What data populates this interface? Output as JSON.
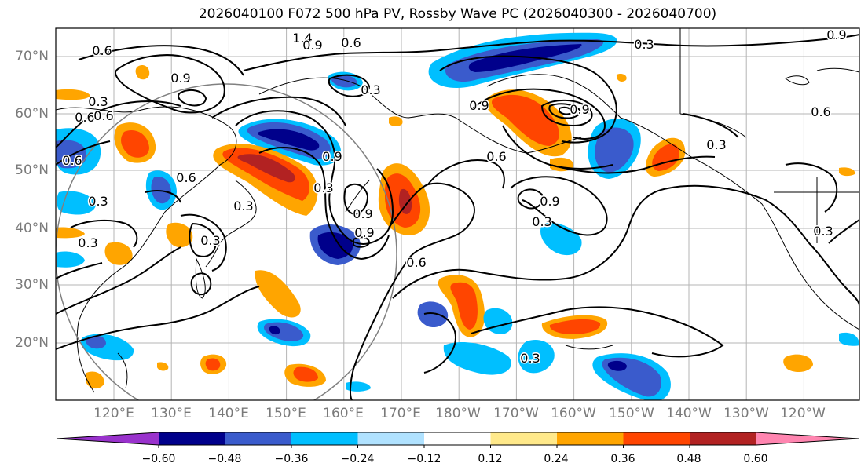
{
  "title": "2026040100 F072 500 hPa PV, Rossby Wave PC (2026040300 - 2026040700)",
  "lat_labels": [
    "70°N",
    "60°N",
    "50°N",
    "40°N",
    "30°N",
    "20°N"
  ],
  "lon_labels": [
    "120°E",
    "130°E",
    "140°E",
    "150°E",
    "160°E",
    "170°E",
    "180°W",
    "170°W",
    "160°W",
    "150°W",
    "140°W",
    "130°W",
    "120°W"
  ],
  "colorbar": {
    "ticks": [
      "−0.60",
      "−0.48",
      "−0.36",
      "−0.24",
      "−0.12",
      "0.12",
      "0.24",
      "0.36",
      "0.48",
      "0.60"
    ],
    "colors": [
      "#9932cc",
      "#00008b",
      "#3a5bcc",
      "#00bfff",
      "#b0e2ff",
      "#ffffff",
      "#ffe98a",
      "#ffa500",
      "#ff4500",
      "#b22222",
      "#ff85b0"
    ]
  },
  "contour_labels": [
    "1.4",
    "0.9",
    "0.6",
    "0.6",
    "0.9",
    "0.3",
    "0.3",
    "0.6",
    "0.9",
    "0.6",
    "0.3",
    "0.3",
    "0.6",
    "0.9",
    "0.6",
    "0.6",
    "0.3",
    "0.3",
    "0.3",
    "0.3",
    "0.9",
    "0.9",
    "0.9",
    "0.3",
    "0.6",
    "0.3",
    "0.3",
    "0.6",
    "0.9",
    "0.9",
    "0.3"
  ],
  "anomaly_colors": {
    "strong_negative": "#00008b",
    "negative": "#3a5bcc",
    "weak_negative": "#00bfff",
    "faint_negative": "#b0e2ff",
    "faint_positive": "#ffe98a",
    "weak_positive": "#ffa500",
    "positive": "#ff4500",
    "strong_positive": "#b22222"
  }
}
